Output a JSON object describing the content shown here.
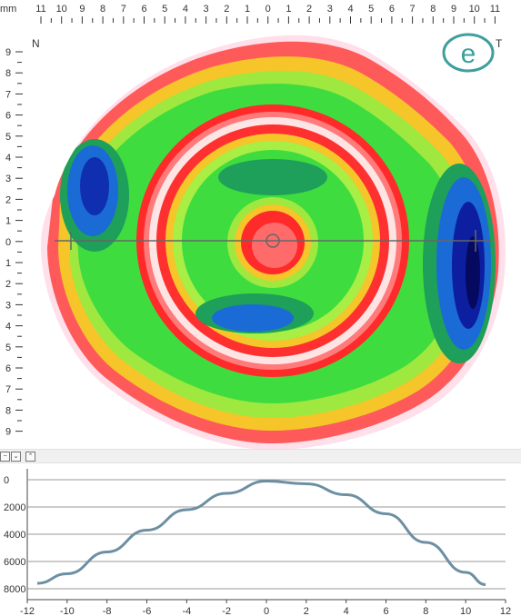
{
  "map": {
    "unit_label": "mm",
    "nasal_label": "N",
    "temporal_label": "T",
    "logo_glyph": "e",
    "top_ticks": [
      "11",
      "10",
      "9",
      "8",
      "7",
      "6",
      "5",
      "4",
      "3",
      "2",
      "1",
      "0",
      "1",
      "2",
      "3",
      "4",
      "5",
      "6",
      "7",
      "8",
      "9",
      "10",
      "11"
    ],
    "left_ticks": [
      "9",
      "8",
      "7",
      "6",
      "5",
      "4",
      "3",
      "2",
      "1",
      "0",
      "1",
      "2",
      "3",
      "4",
      "5",
      "6",
      "7",
      "8",
      "9"
    ]
  },
  "splitter": {
    "buttons": [
      "minus-icon",
      "chevron-down-icon",
      "chevron-up-icon"
    ]
  },
  "chart_data": {
    "type": "line",
    "title": "",
    "xlabel": "",
    "ylabel": "",
    "xlim": [
      -12,
      12
    ],
    "ylim": [
      0,
      8000
    ],
    "y_inverted": true,
    "x_ticks": [
      "-12",
      "-10",
      "-8",
      "-6",
      "-4",
      "-2",
      "0",
      "2",
      "4",
      "6",
      "8",
      "10",
      "12"
    ],
    "y_ticks": [
      "0",
      "2000",
      "4000",
      "6000",
      "8000"
    ],
    "grid": true,
    "series": [
      {
        "color": "#6d8fa3",
        "x": [
          -11.5,
          -10,
          -8,
          -6,
          -4,
          -2,
          0,
          2,
          4,
          6,
          8,
          10,
          11
        ],
        "y": [
          7600,
          6900,
          5300,
          3700,
          2200,
          1000,
          100,
          300,
          1100,
          2500,
          4600,
          6800,
          7700
        ]
      }
    ]
  }
}
